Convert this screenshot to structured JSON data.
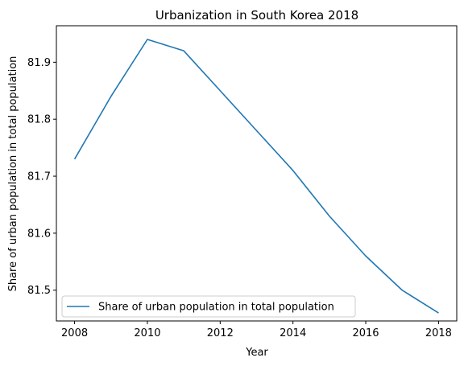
{
  "chart_data": {
    "type": "line",
    "title": "Urbanization in South Korea 2018",
    "xlabel": "Year",
    "ylabel": "Share of urban population in total population",
    "x": [
      2008,
      2009,
      2010,
      2011,
      2012,
      2013,
      2014,
      2015,
      2016,
      2017,
      2018
    ],
    "series": [
      {
        "name": "Share of urban population in total population",
        "values": [
          81.73,
          81.84,
          81.94,
          81.92,
          81.85,
          81.78,
          81.71,
          81.63,
          81.56,
          81.5,
          81.46
        ],
        "color": "#1f77b4"
      }
    ],
    "xlim": [
      2007.5,
      2018.5
    ],
    "ylim": [
      81.446,
      81.964
    ],
    "xticks": [
      2008,
      2010,
      2012,
      2014,
      2016,
      2018
    ],
    "yticks": [
      81.5,
      81.6,
      81.7,
      81.8,
      81.9
    ],
    "grid": false,
    "legend_position": "lower-left"
  }
}
